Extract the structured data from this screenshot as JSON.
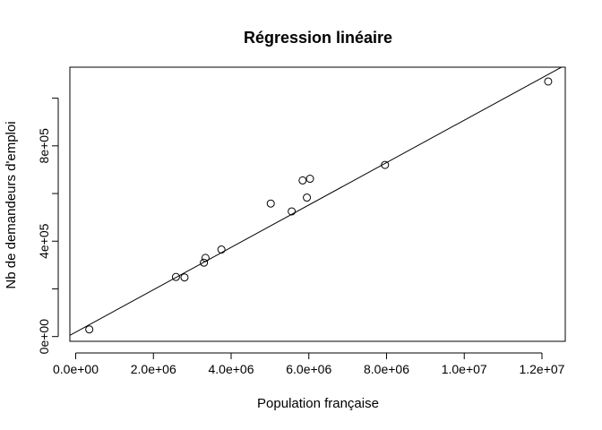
{
  "chart_data": {
    "type": "scatter",
    "title": "Régression linéaire",
    "xlabel": "Population française",
    "ylabel": "Nb de demandeurs d'emploi",
    "xlim": [
      -150000,
      12600000
    ],
    "ylim": [
      -20000,
      1130000
    ],
    "xticks": [
      {
        "value": 0,
        "label": "0.0e+00"
      },
      {
        "value": 2000000,
        "label": "2.0e+06"
      },
      {
        "value": 4000000,
        "label": "4.0e+06"
      },
      {
        "value": 6000000,
        "label": "6.0e+06"
      },
      {
        "value": 8000000,
        "label": "8.0e+06"
      },
      {
        "value": 10000000,
        "label": "1.0e+07"
      },
      {
        "value": 12000000,
        "label": "1.2e+07"
      }
    ],
    "yticks": [
      {
        "value": 0,
        "label": "0e+00"
      },
      {
        "value": 400000,
        "label": "4e+05"
      },
      {
        "value": 800000,
        "label": "8e+05"
      }
    ],
    "yticks_minor": [
      200000,
      600000,
      1000000
    ],
    "points": [
      {
        "x": 350000,
        "y": 30000
      },
      {
        "x": 2580000,
        "y": 250000
      },
      {
        "x": 2800000,
        "y": 248000
      },
      {
        "x": 3300000,
        "y": 310000
      },
      {
        "x": 3340000,
        "y": 330000
      },
      {
        "x": 3750000,
        "y": 365000
      },
      {
        "x": 5020000,
        "y": 558000
      },
      {
        "x": 5560000,
        "y": 525000
      },
      {
        "x": 5840000,
        "y": 655000
      },
      {
        "x": 5950000,
        "y": 583000
      },
      {
        "x": 6030000,
        "y": 662000
      },
      {
        "x": 7960000,
        "y": 720000
      },
      {
        "x": 12160000,
        "y": 1070000
      }
    ],
    "regression_line": {
      "intercept": 18500,
      "slope": 0.0889
    },
    "grid": false,
    "legend": "none"
  }
}
